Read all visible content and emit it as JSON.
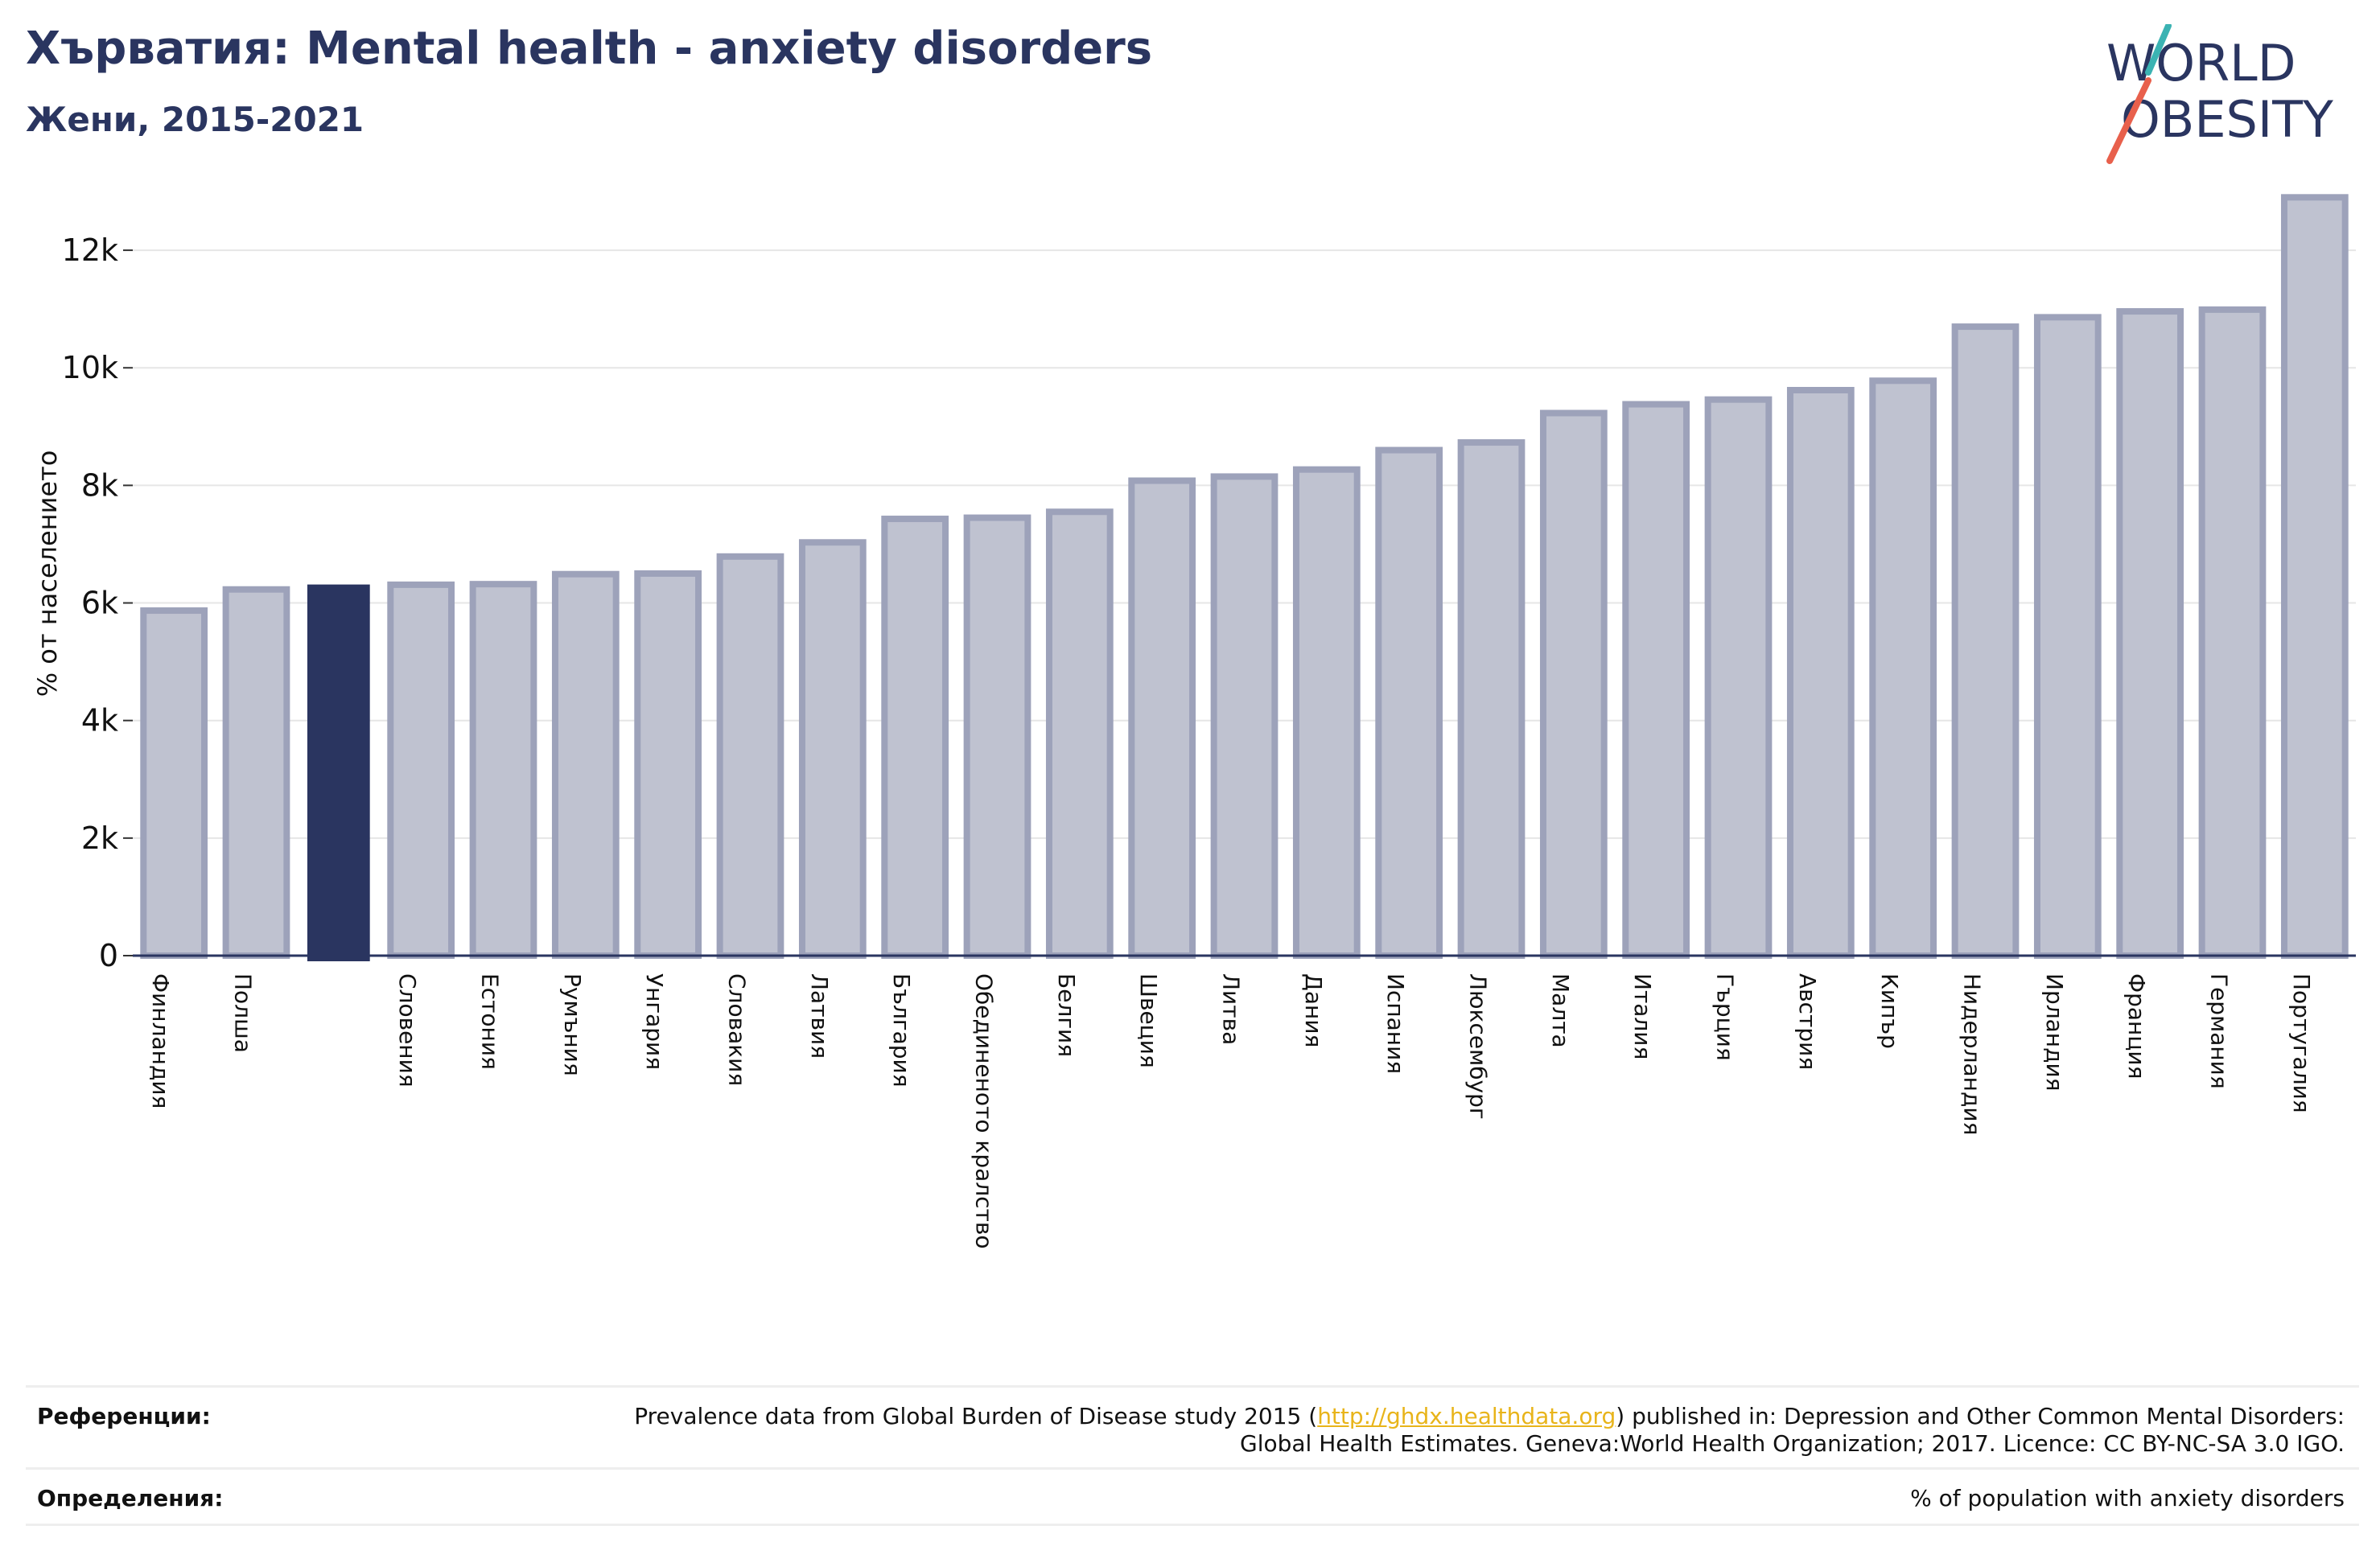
{
  "header": {
    "title": "Хърватия: Mental health - anxiety disorders",
    "subtitle": "Жени, 2015-2021"
  },
  "logo": {
    "line1": "WORLD",
    "line2": "OBESITY",
    "colors": {
      "text": "#2a3560",
      "slash_top": "#3bb3b3",
      "slash_bottom": "#e8604c"
    }
  },
  "chart_data": {
    "type": "bar",
    "ylabel": "% от населението",
    "ylim": [
      0,
      13000
    ],
    "yticks": [
      0,
      2000,
      4000,
      6000,
      8000,
      10000,
      12000
    ],
    "ytick_labels": [
      "0",
      "2k",
      "4k",
      "6k",
      "8k",
      "10k",
      "12k"
    ],
    "grid": true,
    "categories": [
      "Финландия",
      "Полша",
      "",
      "Словения",
      "Естония",
      "Румъния",
      "Унгария",
      "Словакия",
      "Латвия",
      "България",
      "Обединеното кралство",
      "Белгия",
      "Швеция",
      "Литва",
      "Дания",
      "Испания",
      "Люксембург",
      "Малта",
      "Италия",
      "Гърция",
      "Австрия",
      "Кипър",
      "Нидерландия",
      "Ирландия",
      "Франция",
      "Германия",
      "Португалия"
    ],
    "values": [
      5870,
      6230,
      6300,
      6310,
      6320,
      6490,
      6500,
      6790,
      7030,
      7430,
      7450,
      7550,
      8080,
      8150,
      8270,
      8600,
      8730,
      9230,
      9380,
      9460,
      9620,
      9780,
      10700,
      10860,
      10960,
      10990,
      12900
    ],
    "highlight_index": 2,
    "colors": {
      "bar_fill": "#bfc2d0",
      "bar_stroke": "#9da2ba",
      "highlight": "#2a3560",
      "axis": "#2a3560",
      "grid": "#e6e6e6"
    }
  },
  "footer": {
    "references_label": "Референции:",
    "references_pre": "Prevalence data from Global Burden of Disease study 2015 (",
    "references_link": "http://ghdx.healthdata.org",
    "references_post": ") published in: Depression and Other Common Mental Disorders: Global Health Estimates. Geneva:World Health Organization; 2017. Licence: CC BY-NC-SA 3.0 IGO.",
    "definitions_label": "Определения:",
    "definitions_text": "% of population with anxiety disorders"
  }
}
